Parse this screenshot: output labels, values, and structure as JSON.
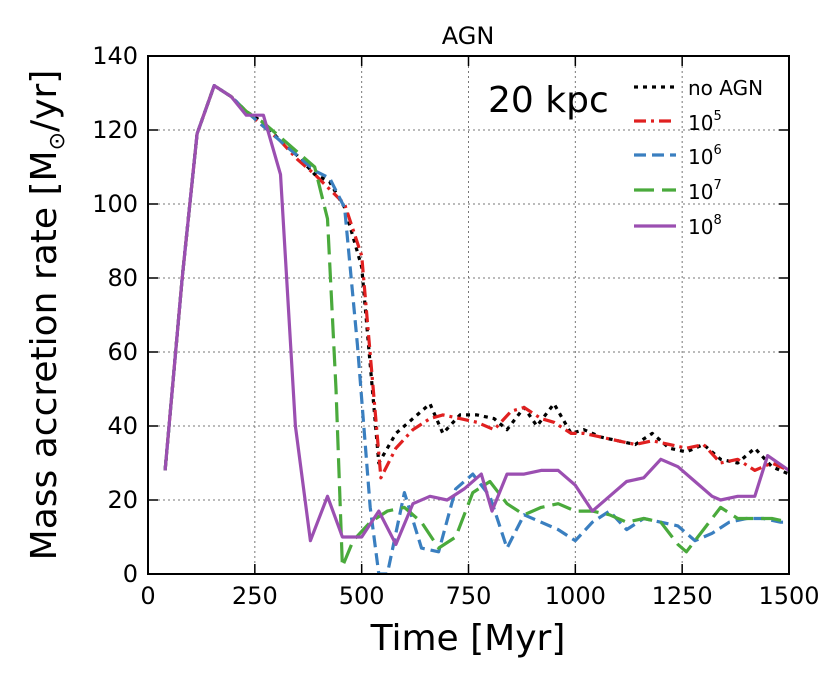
{
  "chart_data": {
    "type": "line",
    "title": "AGN",
    "annotation": "20 kpc",
    "xlabel": "Time [Myr]",
    "ylabel": "Mass accretion rate [M",
    "ylabel_symbol": "⊙",
    "ylabel_suffix": "/yr]",
    "xlim": [
      0,
      1500
    ],
    "ylim": [
      0,
      140
    ],
    "xticks": [
      0,
      250,
      500,
      750,
      1000,
      1250,
      1500
    ],
    "yticks": [
      0,
      20,
      40,
      60,
      80,
      100,
      120,
      140
    ],
    "grid": true,
    "legend_position": "top-right",
    "series": [
      {
        "name": "no AGN",
        "color": "#000000",
        "dash": "dotted",
        "x": [
          40,
          80,
          115,
          155,
          195,
          230,
          270,
          310,
          350,
          390,
          425,
          460,
          500,
          540,
          580,
          620,
          660,
          690,
          730,
          770,
          810,
          840,
          880,
          910,
          950,
          990,
          1020,
          1060,
          1100,
          1140,
          1180,
          1220,
          1260,
          1300,
          1340,
          1380,
          1420,
          1460,
          1500
        ],
        "values": [
          28,
          80,
          119,
          132,
          129,
          125,
          122,
          117,
          113,
          108,
          106,
          99,
          83,
          30,
          38,
          42,
          46,
          38,
          43,
          43,
          42,
          39,
          45,
          40,
          46,
          38,
          39,
          37,
          36,
          35,
          38,
          34,
          33,
          35,
          31,
          30,
          34,
          29,
          27
        ]
      },
      {
        "name": "10^5",
        "label_base": "10",
        "label_exp": "5",
        "color": "#e02020",
        "dash": "dashdot",
        "x": [
          40,
          80,
          115,
          155,
          195,
          230,
          270,
          310,
          350,
          390,
          425,
          460,
          500,
          545,
          580,
          620,
          660,
          690,
          730,
          770,
          810,
          850,
          880,
          920,
          950,
          990,
          1020,
          1060,
          1100,
          1140,
          1180,
          1220,
          1260,
          1300,
          1340,
          1380,
          1420,
          1460,
          1500
        ],
        "values": [
          28,
          80,
          119,
          132,
          129,
          125,
          121,
          117,
          112,
          108,
          104,
          100,
          86,
          26,
          34,
          39,
          42,
          43,
          42,
          41,
          39,
          44,
          45,
          42,
          41,
          38,
          38,
          37,
          36,
          35,
          36,
          35,
          34,
          35,
          30,
          31,
          28,
          30,
          28
        ]
      },
      {
        "name": "10^6",
        "label_base": "10",
        "label_exp": "6",
        "color": "#3a7fc0",
        "dash": "dashed",
        "x": [
          40,
          80,
          115,
          155,
          195,
          230,
          270,
          310,
          350,
          390,
          425,
          460,
          490,
          520,
          540,
          560,
          600,
          640,
          680,
          720,
          760,
          800,
          840,
          880,
          920,
          960,
          1000,
          1040,
          1080,
          1120,
          1160,
          1200,
          1240,
          1280,
          1320,
          1360,
          1400,
          1440,
          1480,
          1500
        ],
        "values": [
          28,
          80,
          119,
          132,
          129,
          125,
          121,
          117,
          113,
          109,
          107,
          99,
          62,
          18,
          0,
          0,
          22,
          7,
          6,
          23,
          27,
          21,
          7,
          16,
          14,
          12,
          9,
          14,
          17,
          12,
          15,
          14,
          13,
          9,
          11,
          14,
          15,
          15,
          14,
          14
        ]
      },
      {
        "name": "10^7",
        "label_base": "10",
        "label_exp": "7",
        "color": "#4aaa3c",
        "dash": "longdash",
        "x": [
          40,
          80,
          115,
          155,
          195,
          230,
          270,
          310,
          350,
          390,
          420,
          440,
          455,
          480,
          520,
          560,
          600,
          640,
          680,
          720,
          760,
          800,
          840,
          880,
          920,
          960,
          1000,
          1040,
          1080,
          1120,
          1160,
          1200,
          1240,
          1260,
          1300,
          1340,
          1380,
          1420,
          1460,
          1500
        ],
        "values": [
          28,
          80,
          119,
          132,
          129,
          125,
          122,
          118,
          114,
          110,
          96,
          50,
          2,
          9,
          14,
          17,
          18,
          14,
          7,
          10,
          22,
          25,
          19,
          16,
          18,
          19,
          17,
          17,
          16,
          14,
          15,
          14,
          8,
          6,
          12,
          18,
          15,
          15,
          15,
          14
        ]
      },
      {
        "name": "10^8",
        "label_base": "10",
        "label_exp": "8",
        "color": "#9b4fb1",
        "dash": "solid",
        "x": [
          40,
          80,
          115,
          155,
          195,
          230,
          270,
          310,
          345,
          380,
          420,
          455,
          500,
          540,
          580,
          620,
          660,
          700,
          740,
          780,
          805,
          840,
          880,
          920,
          960,
          1000,
          1040,
          1080,
          1120,
          1160,
          1200,
          1240,
          1280,
          1320,
          1340,
          1380,
          1420,
          1450,
          1500
        ],
        "values": [
          28,
          80,
          119,
          132,
          129,
          124,
          124,
          108,
          40,
          9,
          21,
          10,
          10,
          17,
          8,
          19,
          21,
          20,
          23,
          27,
          17,
          27,
          27,
          28,
          28,
          24,
          17,
          21,
          25,
          26,
          31,
          29,
          25,
          21,
          20,
          21,
          21,
          32,
          28
        ]
      }
    ]
  }
}
